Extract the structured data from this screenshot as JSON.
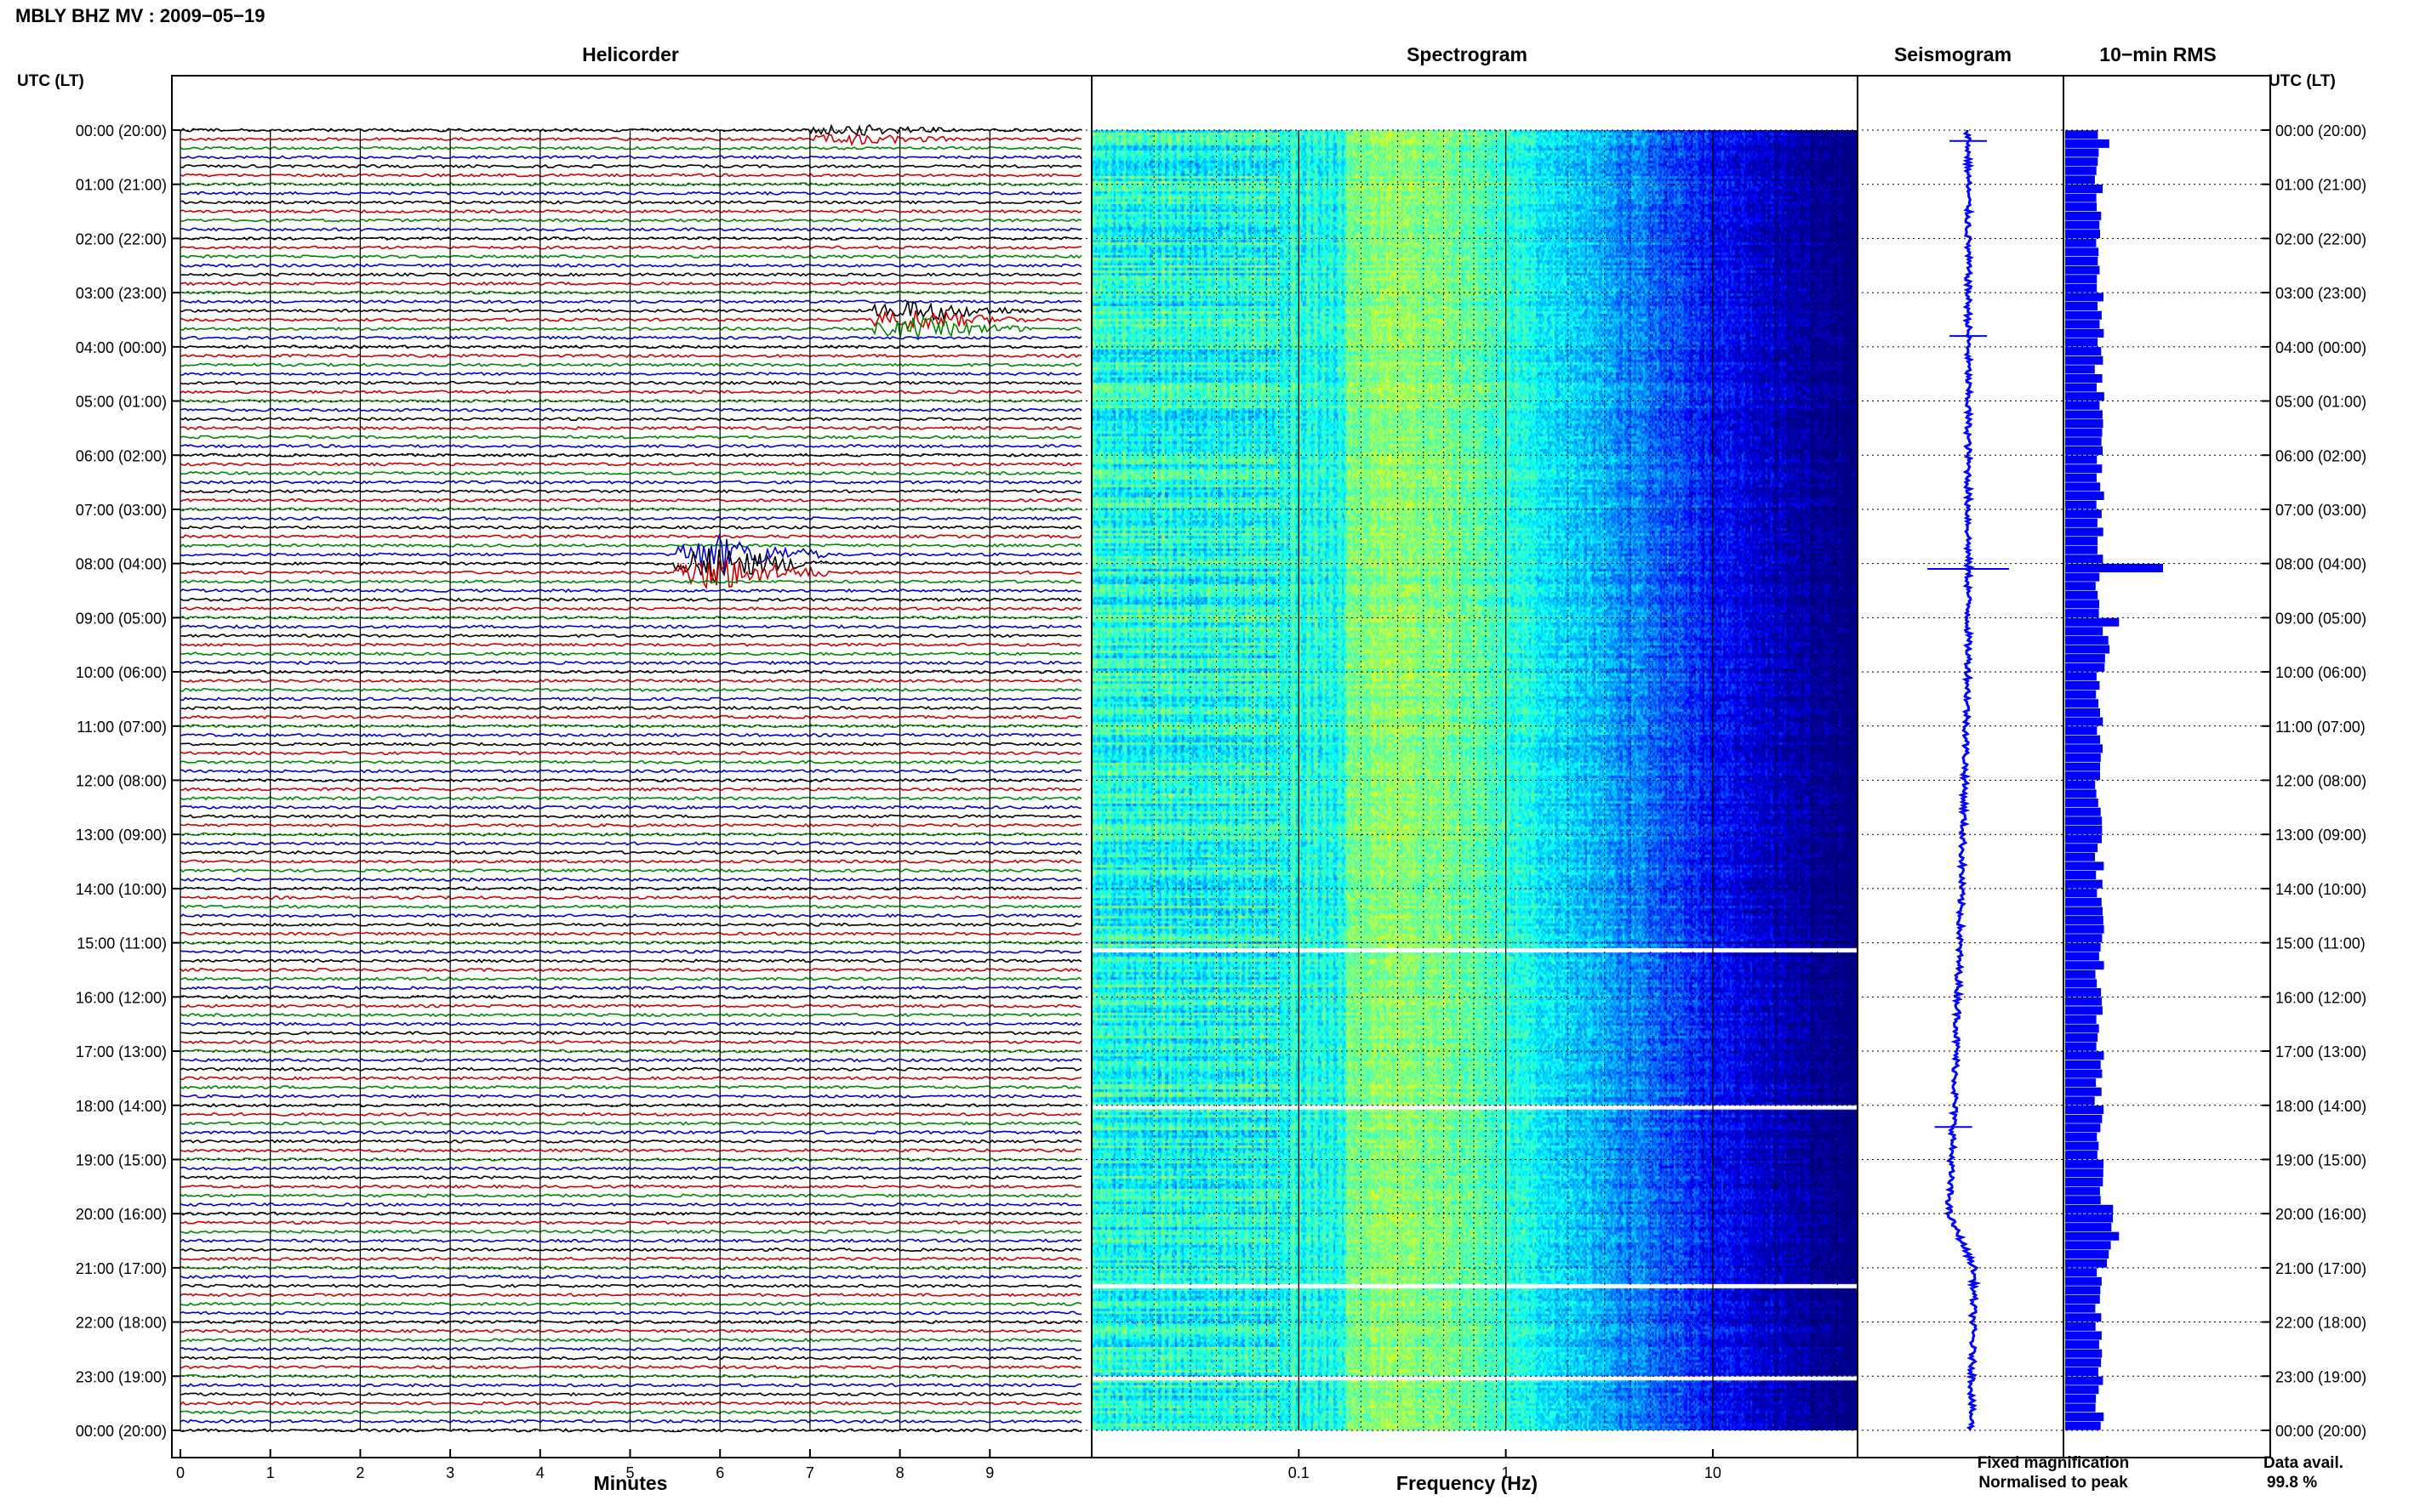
{
  "title": "MBLY BHZ MV : 2009−05−19",
  "time_axis_label": "UTC (LT)",
  "panels": {
    "helicorder": "Helicorder",
    "spectrogram": "Spectrogram",
    "seismogram": "Seismogram",
    "rms": "10−min RMS"
  },
  "legend": {
    "fixed": "Fixed magnification",
    "normalised": "Normalised to peak",
    "fixed_color": "#0000ff",
    "normalised_color": "#ff0000"
  },
  "data_avail": {
    "label": "Data avail.",
    "value": "99.8 %"
  },
  "chart_data": [
    {
      "type": "line",
      "name": "helicorder",
      "title": "Helicorder",
      "xlabel": "Minutes",
      "x_ticks": [
        0,
        1,
        2,
        3,
        4,
        5,
        6,
        7,
        8,
        9
      ],
      "xlim": [
        0,
        10
      ],
      "hours_utc": [
        "00:00",
        "01:00",
        "02:00",
        "03:00",
        "04:00",
        "05:00",
        "06:00",
        "07:00",
        "08:00",
        "09:00",
        "10:00",
        "11:00",
        "12:00",
        "13:00",
        "14:00",
        "15:00",
        "16:00",
        "17:00",
        "18:00",
        "19:00",
        "20:00",
        "21:00",
        "22:00",
        "23:00",
        "00:00"
      ],
      "hours_lt": [
        "(20:00)",
        "(21:00)",
        "(22:00)",
        "(23:00)",
        "(00:00)",
        "(01:00)",
        "(02:00)",
        "(03:00)",
        "(04:00)",
        "(05:00)",
        "(06:00)",
        "(07:00)",
        "(08:00)",
        "(09:00)",
        "(10:00)",
        "(11:00)",
        "(12:00)",
        "(13:00)",
        "(14:00)",
        "(15:00)",
        "(16:00)",
        "(17:00)",
        "(18:00)",
        "(19:00)",
        "(20:00)"
      ],
      "lines_per_hour": 6,
      "trace_colors": [
        "#000000",
        "#cc0000",
        "#008800",
        "#0000cc"
      ],
      "events": [
        {
          "hour": 0,
          "minute": 7.5,
          "amp": 0.4
        },
        {
          "hour": 3.5,
          "minute": 8.2,
          "amp": 0.9
        },
        {
          "hour": 8,
          "minute": 6.0,
          "amp": 1.6
        }
      ]
    },
    {
      "type": "heatmap",
      "name": "spectrogram",
      "title": "Spectrogram",
      "xlabel": "Frequency (Hz)",
      "x_scale": "log",
      "xlim": [
        0.01,
        50
      ],
      "x_ticks": [
        0.1,
        1,
        10
      ],
      "x_tick_labels": [
        "0.1",
        "1",
        "10"
      ],
      "colormap": "jet",
      "gaps_hours": [
        15.1,
        18.0,
        21.3,
        23.0
      ]
    },
    {
      "type": "line",
      "name": "seismogram",
      "title": "Seismogram",
      "spike_hours": [
        0.2,
        3.8,
        8.1,
        18.4
      ]
    },
    {
      "type": "bar",
      "name": "rms",
      "title": "10−min RMS",
      "bins_per_hour": 6,
      "highlights": [
        {
          "hour": 0.1,
          "value": 0.45
        },
        {
          "hour": 8.0,
          "value": 1.0
        },
        {
          "hour": 9.0,
          "value": 0.55
        },
        {
          "hour": 20.4,
          "value": 0.55
        }
      ]
    }
  ]
}
